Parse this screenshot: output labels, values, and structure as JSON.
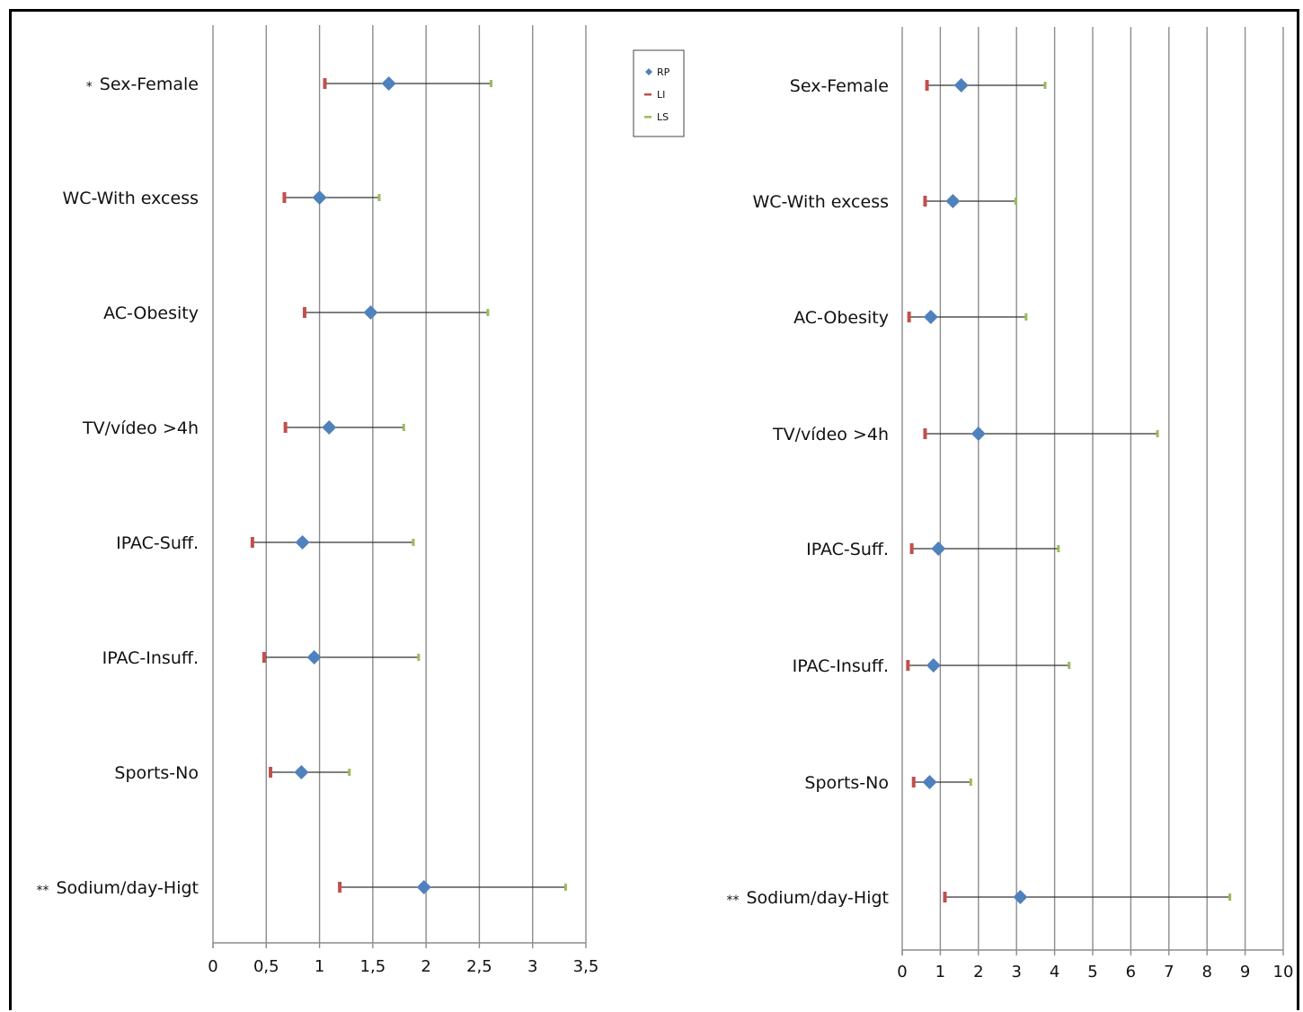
{
  "legend": {
    "entries": [
      {
        "label": "RP",
        "marker": "diamond",
        "color": "#4f81bd"
      },
      {
        "label": "LI",
        "marker": "dash",
        "color": "#c0504d"
      },
      {
        "label": "LS",
        "marker": "dash",
        "color": "#9bbb59"
      }
    ]
  },
  "chart_data": [
    {
      "type": "scatter",
      "subtype": "forest-plot",
      "title": "",
      "xlabel": "",
      "ylabel": "",
      "xlim": [
        0,
        3.5
      ],
      "grid": true,
      "categories": [
        "Sex-Female",
        "WC-With excess",
        "AC-Obesity",
        "TV/vídeo >4h",
        "IPAC-Suff.",
        "IPAC-Insuff.",
        "Sports-No",
        "Sodium/day-Higt"
      ],
      "markers": [
        "*",
        "",
        "",
        "",
        "",
        "",
        "",
        "**"
      ],
      "x_ticks": [
        "0",
        "0,5",
        "1",
        "1,5",
        "2",
        "2,5",
        "3",
        "3,5"
      ],
      "x_tick_values": [
        0,
        0.5,
        1,
        1.5,
        2,
        2.5,
        3,
        3.5
      ],
      "series": [
        {
          "name": "RP",
          "values": [
            1.65,
            1.0,
            1.48,
            1.09,
            0.84,
            0.95,
            0.83,
            1.98
          ]
        },
        {
          "name": "LI",
          "values": [
            1.05,
            0.67,
            0.86,
            0.68,
            0.37,
            0.48,
            0.54,
            1.19
          ]
        },
        {
          "name": "LS",
          "values": [
            2.61,
            1.56,
            2.58,
            1.79,
            1.88,
            1.93,
            1.28,
            3.31
          ]
        }
      ]
    },
    {
      "type": "scatter",
      "subtype": "forest-plot",
      "title": "",
      "xlabel": "",
      "ylabel": "",
      "xlim": [
        0,
        10
      ],
      "grid": true,
      "categories": [
        "Sex-Female",
        "WC-With excess",
        "AC-Obesity",
        "TV/vídeo >4h",
        "IPAC-Suff.",
        "IPAC-Insuff.",
        "Sports-No",
        "Sodium/day-Higt"
      ],
      "markers": [
        "",
        "",
        "",
        "",
        "",
        "",
        "",
        "**"
      ],
      "x_ticks": [
        "0",
        "1",
        "2",
        "3",
        "4",
        "5",
        "6",
        "7",
        "8",
        "9",
        "10"
      ],
      "x_tick_values": [
        0,
        1,
        2,
        3,
        4,
        5,
        6,
        7,
        8,
        9,
        10
      ],
      "series": [
        {
          "name": "RP",
          "values": [
            1.55,
            1.33,
            0.75,
            2.0,
            0.95,
            0.82,
            0.72,
            3.1
          ]
        },
        {
          "name": "LI",
          "values": [
            0.65,
            0.6,
            0.18,
            0.6,
            0.25,
            0.15,
            0.3,
            1.12
          ]
        },
        {
          "name": "LS",
          "values": [
            3.75,
            2.98,
            3.25,
            6.7,
            4.1,
            4.38,
            1.8,
            8.6
          ]
        }
      ]
    }
  ]
}
